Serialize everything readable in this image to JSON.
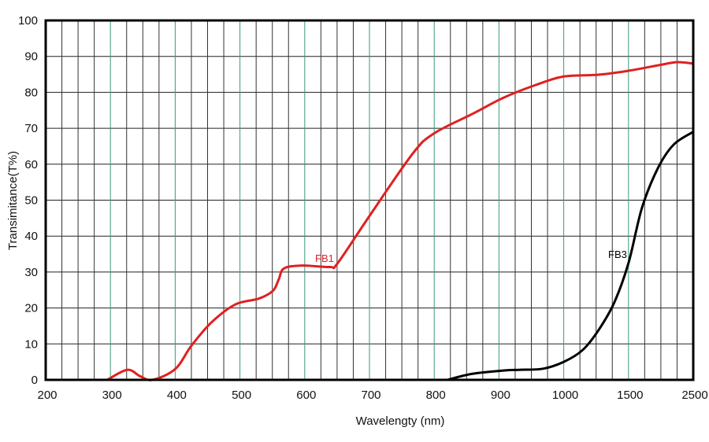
{
  "chart_data": {
    "type": "line",
    "title": "",
    "xlabel": "Wavelengty (nm)",
    "ylabel": "Transimitance(T%)",
    "x_ticks": [
      200,
      300,
      400,
      500,
      600,
      700,
      800,
      900,
      1000,
      1500,
      2500
    ],
    "y_ticks": [
      0,
      10,
      20,
      30,
      40,
      50,
      60,
      70,
      80,
      90,
      100
    ],
    "ylim": [
      0,
      100
    ],
    "xlim": [
      200,
      2500
    ],
    "x_scale": "piecewise (evenly spaced tick labels)",
    "grid": true,
    "series": [
      {
        "name": "FB1",
        "color": "#e02020",
        "x": [
          295,
          326,
          346,
          365,
          400,
          425,
          456,
          493,
          529,
          551,
          560,
          568,
          596,
          639,
          651,
          700,
          767,
          800,
          859,
          907,
          956,
          1000,
          1268,
          1500,
          2012,
          2256,
          2500
        ],
        "y": [
          0,
          2.8,
          1,
          0,
          3,
          9.5,
          16,
          21,
          22.6,
          24.8,
          28,
          31,
          31.8,
          31.4,
          32.5,
          45.6,
          63,
          68.6,
          74,
          78.5,
          82,
          84.4,
          84.9,
          86,
          87.7,
          88.4,
          88
        ]
      },
      {
        "name": "FB3",
        "color": "#000000",
        "x": [
          820,
          859,
          907,
          932,
          968,
          1000,
          1146,
          1268,
          1390,
          1500,
          1707,
          1951,
          2195,
          2500
        ],
        "y": [
          0,
          1.7,
          2.6,
          2.8,
          3.1,
          5,
          8.3,
          13.8,
          21.5,
          32.5,
          47.8,
          58.8,
          65.4,
          69
        ]
      }
    ],
    "annotations": [
      {
        "text": "FB1",
        "color": "#e02020"
      },
      {
        "text": "FB3",
        "color": "#000000"
      }
    ]
  }
}
